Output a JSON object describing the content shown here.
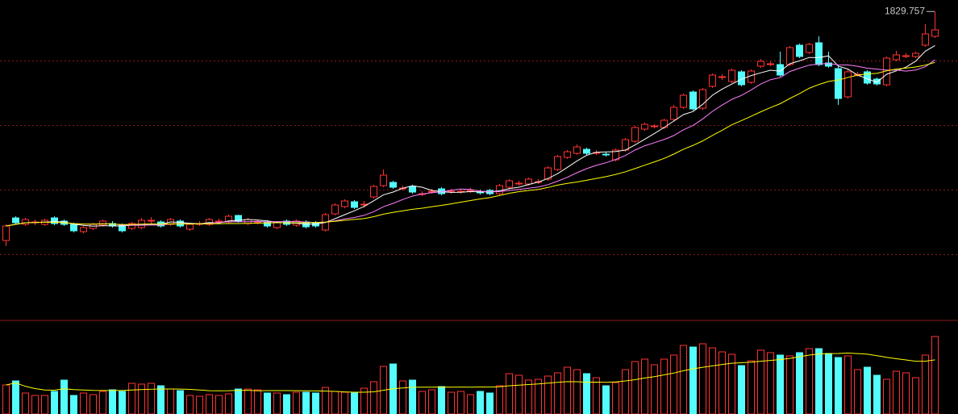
{
  "chart_data": {
    "type": "candlestick",
    "open": [
      1546,
      1574,
      1566,
      1568,
      1566,
      1574,
      1570,
      1566,
      1557,
      1561,
      1565,
      1567,
      1565,
      1561,
      1562,
      1570,
      1569,
      1566,
      1570,
      1560,
      1566,
      1566,
      1569,
      1569,
      1577,
      1567,
      1568,
      1569,
      1562,
      1570,
      1565,
      1569,
      1568,
      1559,
      1579,
      1588,
      1594,
      1590,
      1600,
      1614,
      1618,
      1610,
      1613,
      1603,
      1606,
      1610,
      1606,
      1606,
      1607,
      1606,
      1608,
      1604,
      1612,
      1616,
      1616,
      1618,
      1622,
      1634,
      1649,
      1654,
      1659,
      1654,
      1653,
      1646,
      1658,
      1669,
      1684,
      1687,
      1686,
      1696,
      1711,
      1730,
      1710,
      1737,
      1748,
      1743,
      1755,
      1742,
      1762,
      1764,
      1764,
      1764,
      1788,
      1779,
      1791,
      1766,
      1759,
      1724,
      1751,
      1755,
      1746,
      1739,
      1770,
      1774,
      1774,
      1788,
      1799
    ],
    "high": [
      1566,
      1576,
      1574,
      1572,
      1573,
      1576,
      1572,
      1568,
      1564,
      1568,
      1572,
      1570,
      1567,
      1569,
      1574,
      1575,
      1571,
      1574,
      1572,
      1568,
      1570,
      1574,
      1573,
      1578,
      1578,
      1574,
      1572,
      1571,
      1570,
      1572,
      1572,
      1571,
      1570,
      1580,
      1592,
      1597,
      1596,
      1595,
      1615,
      1634,
      1620,
      1614,
      1615,
      1607,
      1610,
      1612,
      1610,
      1610,
      1611,
      1609,
      1610,
      1616,
      1622,
      1620,
      1624,
      1622,
      1638,
      1652,
      1658,
      1665,
      1661,
      1658,
      1656,
      1660,
      1673,
      1688,
      1692,
      1690,
      1697,
      1714,
      1728,
      1732,
      1735,
      1753,
      1752,
      1759,
      1757,
      1758,
      1771,
      1768,
      1780,
      1787,
      1790,
      1791,
      1799,
      1780,
      1762,
      1758,
      1755,
      1757,
      1748,
      1774,
      1781,
      1778,
      1780,
      1814,
      1829.757
    ],
    "low": [
      1539,
      1566,
      1564,
      1565,
      1564,
      1565,
      1564,
      1556,
      1555,
      1559,
      1563,
      1562,
      1556,
      1559,
      1560,
      1567,
      1562,
      1564,
      1562,
      1558,
      1564,
      1564,
      1567,
      1567,
      1568,
      1565,
      1566,
      1562,
      1560,
      1564,
      1563,
      1561,
      1562,
      1557,
      1577,
      1586,
      1585,
      1587,
      1598,
      1612,
      1610,
      1608,
      1604,
      1601,
      1604,
      1602,
      1604,
      1604,
      1605,
      1603,
      1602,
      1602,
      1610,
      1614,
      1614,
      1616,
      1620,
      1632,
      1647,
      1652,
      1652,
      1652,
      1650,
      1644,
      1656,
      1667,
      1682,
      1685,
      1684,
      1694,
      1709,
      1707,
      1708,
      1735,
      1745,
      1741,
      1737,
      1740,
      1760,
      1762,
      1749,
      1762,
      1772,
      1777,
      1762,
      1760,
      1714,
      1722,
      1749,
      1739,
      1738,
      1737,
      1768,
      1772,
      1772,
      1786,
      1797
    ],
    "close": [
      1564,
      1568,
      1572,
      1569,
      1571,
      1567,
      1566,
      1558,
      1562,
      1566,
      1570,
      1564,
      1558,
      1567,
      1571,
      1571,
      1564,
      1572,
      1564,
      1566,
      1567,
      1572,
      1570,
      1576,
      1570,
      1572,
      1569,
      1564,
      1568,
      1566,
      1570,
      1563,
      1564,
      1578,
      1590,
      1595,
      1587,
      1591,
      1613,
      1627,
      1612,
      1611,
      1606,
      1604,
      1607,
      1604,
      1607,
      1607,
      1608,
      1605,
      1604,
      1614,
      1620,
      1617,
      1622,
      1619,
      1636,
      1650,
      1656,
      1662,
      1654,
      1655,
      1652,
      1658,
      1671,
      1686,
      1690,
      1688,
      1695,
      1711,
      1726,
      1709,
      1733,
      1751,
      1749,
      1757,
      1739,
      1756,
      1768,
      1765,
      1751,
      1785,
      1774,
      1789,
      1764,
      1762,
      1722,
      1755,
      1752,
      1741,
      1740,
      1772,
      1776,
      1775,
      1778,
      1802,
      1807
    ],
    "ylim": [
      1449,
      1844
    ],
    "ygrid": [
      1529,
      1609,
      1689,
      1769
    ],
    "up_color": "#ff3232",
    "down_color": "#54fcfc",
    "moving_averages": [
      {
        "period": 5,
        "color": "#ffffff"
      },
      {
        "period": 10,
        "color": "#ff80ff"
      },
      {
        "period": 20,
        "color": "#ffff00"
      }
    ],
    "volume": {
      "values": [
        36,
        41,
        26,
        23,
        23,
        28,
        42,
        23,
        26,
        24,
        28,
        30,
        28,
        38,
        37,
        38,
        35,
        31,
        29,
        23,
        22,
        24,
        23,
        25,
        31,
        31,
        30,
        26,
        26,
        24,
        27,
        27,
        26,
        33,
        28,
        27,
        26,
        32,
        40,
        59,
        62,
        41,
        42,
        28,
        30,
        34,
        27,
        28,
        24,
        28,
        26,
        35,
        50,
        48,
        42,
        43,
        47,
        51,
        58,
        55,
        50,
        45,
        35,
        39,
        55,
        65,
        68,
        61,
        68,
        73,
        85,
        83,
        87,
        82,
        77,
        74,
        60,
        66,
        79,
        76,
        73,
        72,
        76,
        81,
        81,
        75,
        70,
        72,
        55,
        58,
        48,
        43,
        53,
        51,
        45,
        73,
        96
      ],
      "ylim": [
        0,
        116
      ],
      "ma_period": 20,
      "ma_color": "#ffff00"
    }
  }
}
